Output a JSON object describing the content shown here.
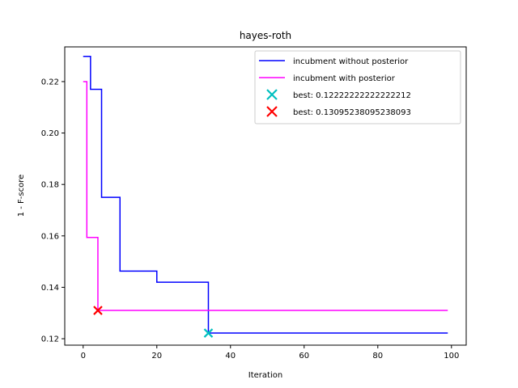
{
  "chart_data": {
    "type": "line",
    "title": "hayes-roth",
    "xlabel": "Iteration",
    "ylabel": "1 - F-score",
    "xlim": [
      -5,
      104
    ],
    "ylim": [
      0.1175,
      0.2335
    ],
    "x_ticks": [
      0,
      20,
      40,
      60,
      80,
      100
    ],
    "y_ticks": [
      0.12,
      0.14,
      0.16,
      0.18,
      0.2,
      0.22
    ],
    "y_tick_labels": [
      "0.12",
      "0.14",
      "0.16",
      "0.18",
      "0.20",
      "0.22"
    ],
    "grid": false,
    "legend_position": "top-right",
    "series": [
      {
        "name": "incubment without posterior",
        "color": "#0000ff",
        "step": true,
        "points": [
          [
            0,
            0.2298
          ],
          [
            1,
            0.2298
          ],
          [
            2,
            0.217
          ],
          [
            4,
            0.217
          ],
          [
            5,
            0.175
          ],
          [
            9,
            0.175
          ],
          [
            10,
            0.1463
          ],
          [
            19,
            0.1463
          ],
          [
            20,
            0.142
          ],
          [
            33,
            0.142
          ],
          [
            34,
            0.1222
          ],
          [
            99,
            0.1222
          ]
        ]
      },
      {
        "name": "incubment with posterior",
        "color": "#ff00ff",
        "step": true,
        "points": [
          [
            0,
            0.22
          ],
          [
            1,
            0.1594
          ],
          [
            3,
            0.1594
          ],
          [
            4,
            0.131
          ],
          [
            99,
            0.131
          ]
        ]
      }
    ],
    "markers": [
      {
        "label": "best: 0.12222222222222212",
        "x": 34,
        "y": 0.1222,
        "color": "#00bfbf",
        "symbol": "x"
      },
      {
        "label": "best: 0.13095238095238093",
        "x": 4,
        "y": 0.131,
        "color": "#ff0000",
        "symbol": "x"
      }
    ]
  }
}
